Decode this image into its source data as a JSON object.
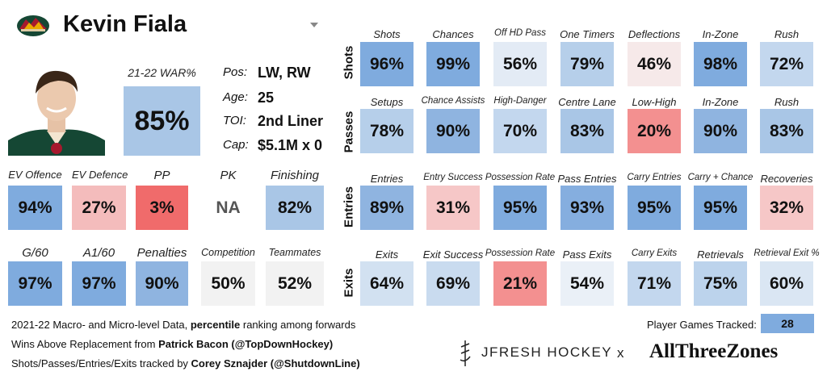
{
  "player": {
    "name": "Kevin Fiala",
    "logo_icon": "wild-logo-icon",
    "dropdown_icon": "caret-down-icon"
  },
  "war": {
    "label": "21-22 WAR%",
    "value": "85%",
    "color": "#a9c6e6"
  },
  "bio": {
    "pos_label": "Pos:",
    "pos": "LW, RW",
    "age_label": "Age:",
    "age": "25",
    "toi_label": "TOI:",
    "toi": "2nd Liner",
    "cap_label": "Cap:",
    "cap": "$5.1M x 0"
  },
  "left_row1": [
    {
      "label": "EV Offence",
      "value": "94%",
      "color": "#7fabde"
    },
    {
      "label": "EV Defence",
      "value": "27%",
      "color": "#f4bcbc"
    },
    {
      "label": "PP",
      "value": "3%",
      "color": "#f06b6b"
    },
    {
      "label": "PK",
      "value": "NA",
      "color": "#ffffff"
    },
    {
      "label": "Finishing",
      "value": "82%",
      "color": "#a9c6e6"
    }
  ],
  "left_row2": [
    {
      "label": "G/60",
      "value": "97%",
      "color": "#7fabde"
    },
    {
      "label": "A1/60",
      "value": "97%",
      "color": "#7fabde"
    },
    {
      "label": "Penalties",
      "value": "90%",
      "color": "#8fb4e0"
    },
    {
      "label": "Competition",
      "value": "50%",
      "color": "#f2f2f2"
    },
    {
      "label": "Teammates",
      "value": "52%",
      "color": "#f2f2f2"
    }
  ],
  "rows": [
    {
      "name": "Shots",
      "cells": [
        {
          "label": "Shots",
          "value": "96%",
          "color": "#7fabde"
        },
        {
          "label": "Chances",
          "value": "99%",
          "color": "#7fabde"
        },
        {
          "label": "Off HD Pass",
          "value": "56%",
          "color": "#e3ebf5"
        },
        {
          "label": "One Timers",
          "value": "79%",
          "color": "#b6cfea"
        },
        {
          "label": "Deflections",
          "value": "46%",
          "color": "#f6e9e9"
        },
        {
          "label": "In-Zone",
          "value": "98%",
          "color": "#7fabde"
        },
        {
          "label": "Rush",
          "value": "72%",
          "color": "#c3d7ee"
        }
      ]
    },
    {
      "name": "Passes",
      "cells": [
        {
          "label": "Setups",
          "value": "78%",
          "color": "#b6cfea"
        },
        {
          "label": "Chance Assists",
          "value": "90%",
          "color": "#8fb4e0"
        },
        {
          "label": "High-Danger",
          "value": "70%",
          "color": "#c3d7ee"
        },
        {
          "label": "Centre Lane",
          "value": "83%",
          "color": "#a9c6e6"
        },
        {
          "label": "Low-High",
          "value": "20%",
          "color": "#f39090"
        },
        {
          "label": "In-Zone",
          "value": "90%",
          "color": "#8fb4e0"
        },
        {
          "label": "Rush",
          "value": "83%",
          "color": "#a9c6e6"
        }
      ]
    },
    {
      "name": "Entries",
      "cells": [
        {
          "label": "Entries",
          "value": "89%",
          "color": "#8fb4e0"
        },
        {
          "label": "Entry Success",
          "value": "31%",
          "color": "#f6c7c7"
        },
        {
          "label": "Possession Rate",
          "value": "95%",
          "color": "#7fabde"
        },
        {
          "label": "Pass Entries",
          "value": "93%",
          "color": "#85aedf"
        },
        {
          "label": "Carry Entries",
          "value": "95%",
          "color": "#7fabde"
        },
        {
          "label": "Carry + Chance",
          "value": "95%",
          "color": "#7fabde"
        },
        {
          "label": "Recoveries",
          "value": "32%",
          "color": "#f6c7c7"
        }
      ]
    },
    {
      "name": "Exits",
      "cells": [
        {
          "label": "Exits",
          "value": "64%",
          "color": "#d2e1f1"
        },
        {
          "label": "Exit Success",
          "value": "69%",
          "color": "#c9dbef"
        },
        {
          "label": "Possession Rate",
          "value": "21%",
          "color": "#f39090"
        },
        {
          "label": "Pass Exits",
          "value": "54%",
          "color": "#eaf0f7"
        },
        {
          "label": "Carry Exits",
          "value": "71%",
          "color": "#c3d7ee"
        },
        {
          "label": "Retrievals",
          "value": "75%",
          "color": "#bcd3ec"
        },
        {
          "label": "Retrieval Exit %",
          "value": "60%",
          "color": "#dae6f3"
        }
      ]
    }
  ],
  "footer": {
    "line1_a": "2021-22 Macro- and Micro-level Data, ",
    "line1_b": "percentile",
    "line1_c": " ranking among forwards",
    "line2_a": "Wins Above Replacement from ",
    "line2_b": "Patrick Bacon (@TopDownHockey)",
    "line3_a": "Shots/Passes/Entries/Exits tracked by ",
    "line3_b": "Corey Sznajder (@ShutdownLine)",
    "games_label": "Player Games Tracked:",
    "games_value": "28",
    "brand1": "JFRESH HOCKEY",
    "brand_x": "x",
    "brand2": "AllThreeZones"
  }
}
